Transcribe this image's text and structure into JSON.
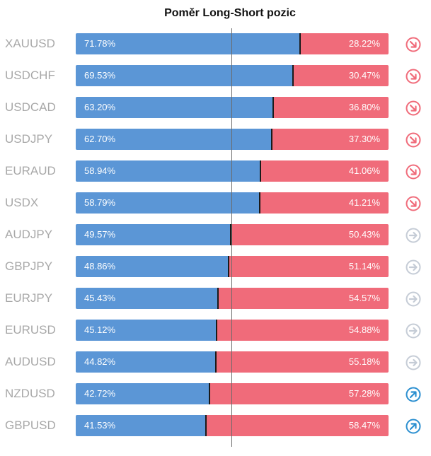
{
  "chart_data": {
    "type": "bar",
    "title": "Poměr Long-Short pozic",
    "rows": [
      {
        "symbol": "XAUUSD",
        "long": 71.78,
        "short": 28.22,
        "long_label": "71.78%",
        "short_label": "28.22%",
        "signal": "down"
      },
      {
        "symbol": "USDCHF",
        "long": 69.53,
        "short": 30.47,
        "long_label": "69.53%",
        "short_label": "30.47%",
        "signal": "down"
      },
      {
        "symbol": "USDCAD",
        "long": 63.2,
        "short": 36.8,
        "long_label": "63.20%",
        "short_label": "36.80%",
        "signal": "down"
      },
      {
        "symbol": "USDJPY",
        "long": 62.7,
        "short": 37.3,
        "long_label": "62.70%",
        "short_label": "37.30%",
        "signal": "down"
      },
      {
        "symbol": "EURAUD",
        "long": 58.94,
        "short": 41.06,
        "long_label": "58.94%",
        "short_label": "41.06%",
        "signal": "down"
      },
      {
        "symbol": "USDX",
        "long": 58.79,
        "short": 41.21,
        "long_label": "58.79%",
        "short_label": "41.21%",
        "signal": "down"
      },
      {
        "symbol": "AUDJPY",
        "long": 49.57,
        "short": 50.43,
        "long_label": "49.57%",
        "short_label": "50.43%",
        "signal": "neutral"
      },
      {
        "symbol": "GBPJPY",
        "long": 48.86,
        "short": 51.14,
        "long_label": "48.86%",
        "short_label": "51.14%",
        "signal": "neutral"
      },
      {
        "symbol": "EURJPY",
        "long": 45.43,
        "short": 54.57,
        "long_label": "45.43%",
        "short_label": "54.57%",
        "signal": "neutral"
      },
      {
        "symbol": "EURUSD",
        "long": 45.12,
        "short": 54.88,
        "long_label": "45.12%",
        "short_label": "54.88%",
        "signal": "neutral"
      },
      {
        "symbol": "AUDUSD",
        "long": 44.82,
        "short": 55.18,
        "long_label": "44.82%",
        "short_label": "55.18%",
        "signal": "neutral"
      },
      {
        "symbol": "NZDUSD",
        "long": 42.72,
        "short": 57.28,
        "long_label": "42.72%",
        "short_label": "57.28%",
        "signal": "up"
      },
      {
        "symbol": "GBPUSD",
        "long": 41.53,
        "short": 58.47,
        "long_label": "41.53%",
        "short_label": "58.47%",
        "signal": "up"
      }
    ],
    "reference_line": 50,
    "colors": {
      "long": "#5b96d6",
      "short": "#f06b7a",
      "symbol_text": "#a8a8a8",
      "signal_down": "#f06b7a",
      "signal_neutral": "#c5ccd6",
      "signal_up": "#2b8fd0"
    },
    "icons": {
      "down": "arrow-down-right-icon",
      "neutral": "arrow-right-icon",
      "up": "arrow-up-right-icon"
    }
  }
}
